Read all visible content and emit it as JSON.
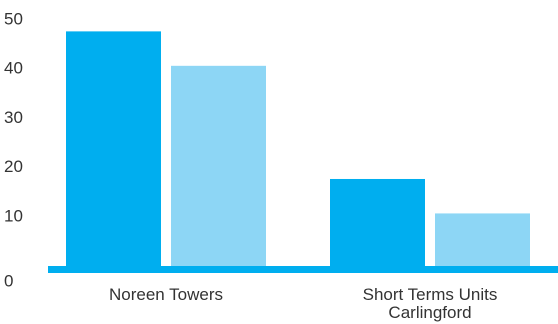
{
  "chart_data": {
    "type": "bar",
    "categories": [
      [
        "Noreen Towers"
      ],
      [
        "Short Terms Units",
        "Carlingford"
      ]
    ],
    "series": [
      {
        "values": [
          48.5,
          41.5
        ]
      },
      {
        "values": [
          18.5,
          11.5
        ]
      }
    ],
    "ylim": [
      0,
      50
    ],
    "yticks": [
      0,
      10,
      20,
      30,
      40,
      50
    ],
    "grid": false,
    "legend": "none",
    "colors": {
      "dark_bar": "#00aeef",
      "light_bar": "#8dd6f5",
      "baseline": "#00aeef"
    }
  }
}
